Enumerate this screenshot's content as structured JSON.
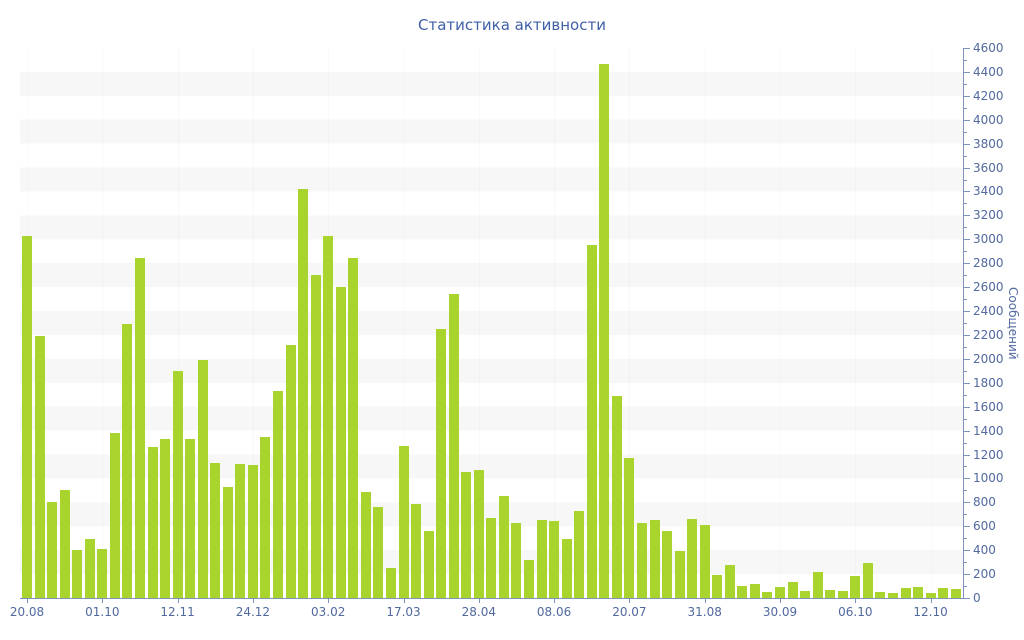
{
  "title": "Статистика активности",
  "chart_data": {
    "type": "bar",
    "title": "Статистика активности",
    "xlabel": "",
    "ylabel": "Сообщений",
    "legend": "none",
    "grid": "horizontal-stripes",
    "y_axis": {
      "min": 0,
      "max": 4600,
      "major_step": 200,
      "minor_step": 100,
      "position": "right"
    },
    "x_ticks": {
      "labels": [
        "20.08",
        "01.10",
        "12.11",
        "24.12",
        "03.02",
        "17.03",
        "28.04",
        "08.06",
        "20.07",
        "31.08",
        "30.09",
        "06.10",
        "12.10"
      ],
      "every": 6,
      "first_index": 0
    },
    "values": [
      3030,
      2190,
      800,
      900,
      400,
      490,
      410,
      1380,
      2290,
      2840,
      1260,
      1330,
      1900,
      1330,
      1990,
      1130,
      930,
      1120,
      1110,
      1350,
      1730,
      2120,
      3420,
      2700,
      3030,
      2600,
      2840,
      890,
      760,
      250,
      1270,
      790,
      560,
      2250,
      2540,
      1050,
      1070,
      670,
      850,
      630,
      320,
      650,
      640,
      490,
      730,
      2950,
      4470,
      1690,
      1170,
      630,
      650,
      560,
      390,
      660,
      610,
      190,
      280,
      100,
      120,
      50,
      90,
      130,
      60,
      220,
      70,
      60,
      180,
      290,
      50,
      40,
      80,
      90,
      40,
      80,
      75
    ],
    "colors": {
      "bar": "#a9d32d",
      "axis": "#7e92bd",
      "labels": "#51699f",
      "title": "#3f5fa7",
      "stripe": "#f7f7f7",
      "background": "#ffffff"
    }
  }
}
